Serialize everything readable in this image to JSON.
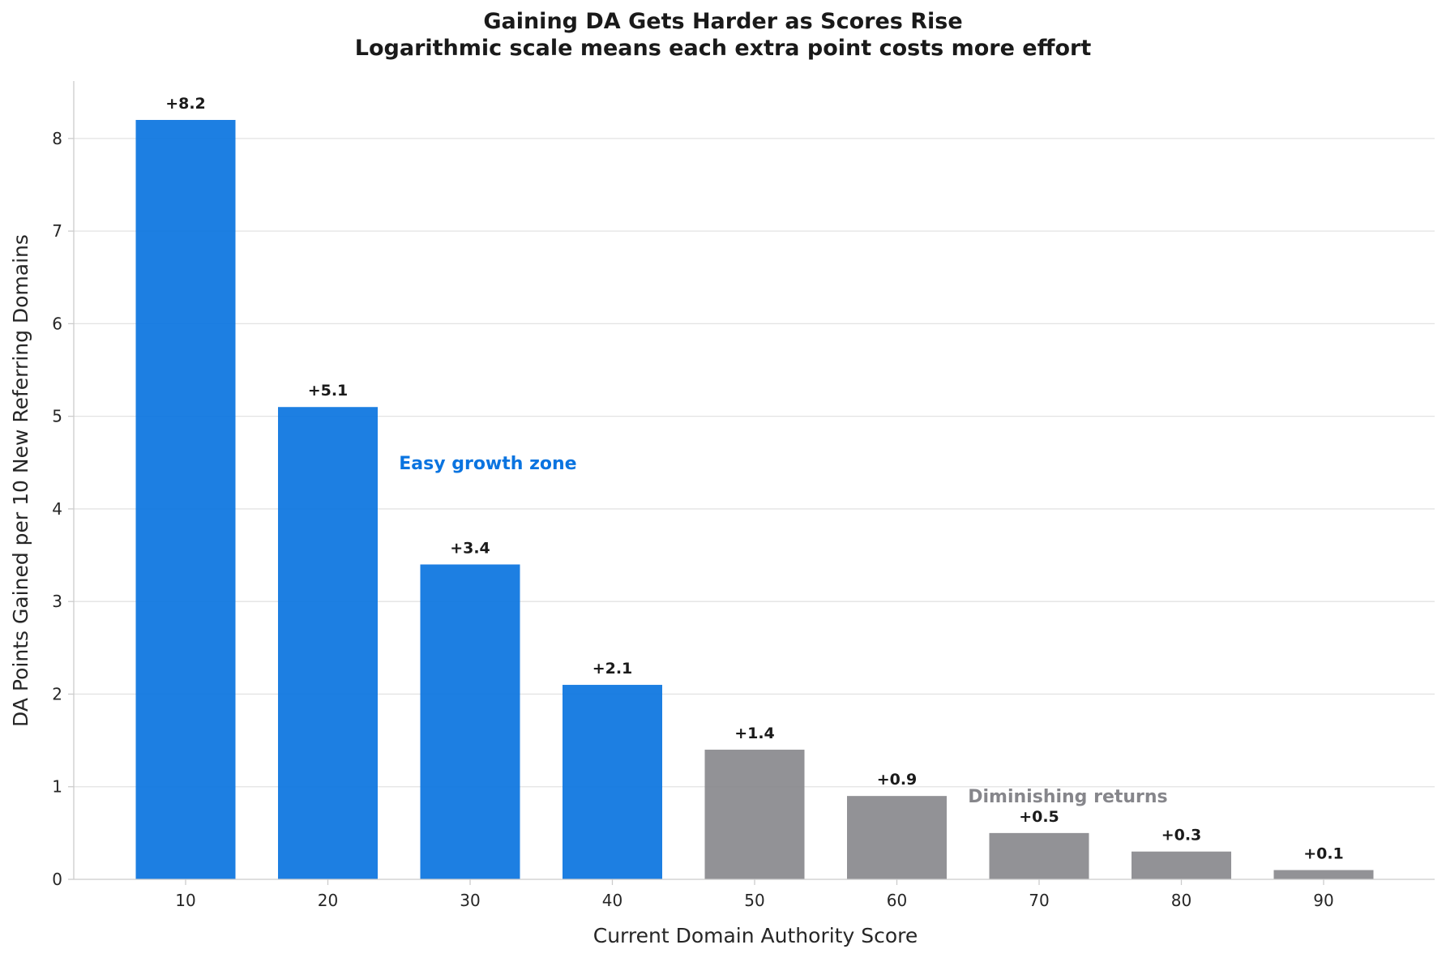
{
  "chart_data": {
    "type": "bar",
    "title": "Gaining DA Gets Harder as Scores Rise",
    "subtitle": "Logarithmic scale means each extra point costs more effort",
    "xlabel": "Current Domain Authority Score",
    "ylabel": "DA Points Gained per 10 New Referring Domains",
    "categories": [
      "10",
      "20",
      "30",
      "40",
      "50",
      "60",
      "70",
      "80",
      "90"
    ],
    "values": [
      8.2,
      5.1,
      3.4,
      2.1,
      1.4,
      0.9,
      0.5,
      0.3,
      0.1
    ],
    "value_labels": [
      "+8.2",
      "+5.1",
      "+3.4",
      "+2.1",
      "+1.4",
      "+0.9",
      "+0.5",
      "+0.3",
      "+0.1"
    ],
    "ylim": [
      0,
      8.62
    ],
    "yticks": [
      0,
      1,
      2,
      3,
      4,
      5,
      6,
      7,
      8
    ],
    "grid": "horizontal",
    "colors": {
      "easy": "#0a74e0",
      "diminishing": "#86868b"
    },
    "bar_groups": [
      "easy",
      "easy",
      "easy",
      "easy",
      "diminishing",
      "diminishing",
      "diminishing",
      "diminishing",
      "diminishing"
    ],
    "annotations": [
      {
        "text": "Easy growth zone",
        "x": 25,
        "y": 4.5,
        "color": "#0a74e0"
      },
      {
        "text": "Diminishing returns",
        "x": 65,
        "y": 0.9,
        "color": "#86868b"
      }
    ]
  }
}
